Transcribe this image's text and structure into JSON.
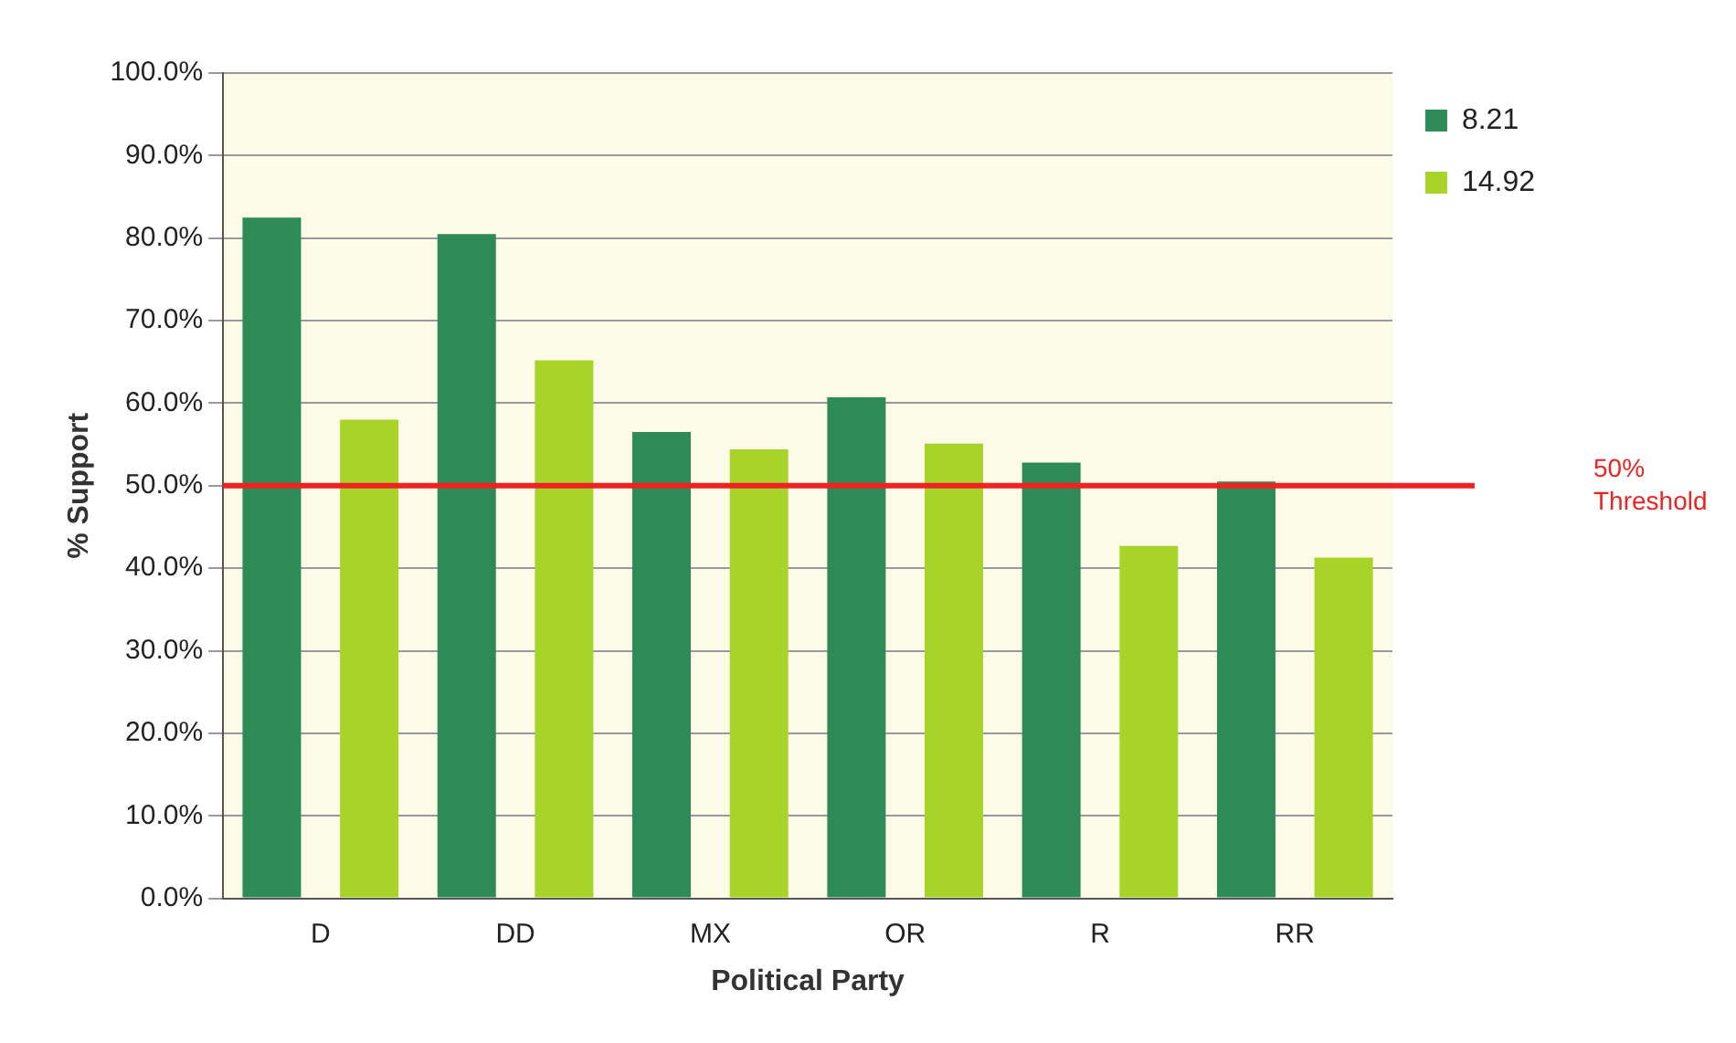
{
  "chart_data": {
    "type": "bar",
    "xlabel": "Political Party",
    "ylabel": "% Support",
    "categories": [
      "D",
      "DD",
      "MX",
      "OR",
      "R",
      "RR"
    ],
    "series": [
      {
        "name": "8.21",
        "color": "#2e8b57",
        "values": [
          82.5,
          80.5,
          56.5,
          60.7,
          52.8,
          50.5
        ]
      },
      {
        "name": "14.92",
        "color": "#a8d42a",
        "values": [
          58.0,
          65.2,
          54.4,
          55.1,
          42.7,
          41.3
        ]
      }
    ],
    "ylim": [
      0,
      100
    ],
    "yticks": [
      {
        "value": 0,
        "label": "0.0%"
      },
      {
        "value": 10,
        "label": "10.0%"
      },
      {
        "value": 20,
        "label": "20.0%"
      },
      {
        "value": 30,
        "label": "30.0%"
      },
      {
        "value": 40,
        "label": "40.0%"
      },
      {
        "value": 50,
        "label": "50.0%"
      },
      {
        "value": 60,
        "label": "60.0%"
      },
      {
        "value": 70,
        "label": "70.0%"
      },
      {
        "value": 80,
        "label": "80.0%"
      },
      {
        "value": 90,
        "label": "90.0%"
      },
      {
        "value": 100,
        "label": "100.0%"
      }
    ],
    "ref_lines": [
      {
        "axis": "y",
        "value": 50,
        "label": "50% Threshold",
        "color": "#ee2222"
      }
    ],
    "grid": "y",
    "legend": "right"
  }
}
